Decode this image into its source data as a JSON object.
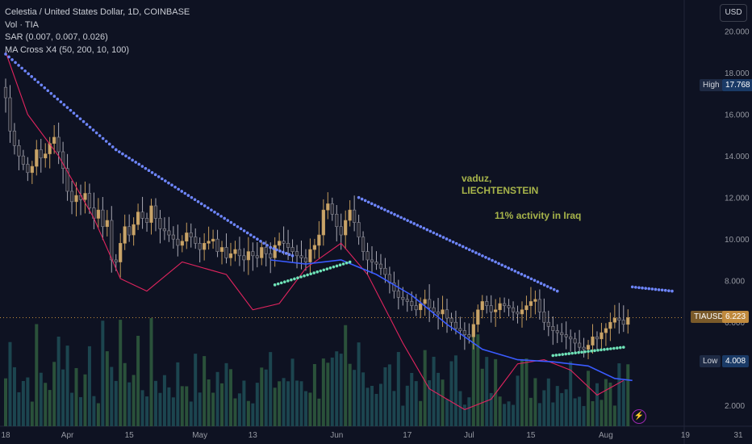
{
  "legend": {
    "title": "Celestia / United States Dollar, 1D, COINBASE",
    "volume": "Vol · TIA",
    "sar": "SAR (0.007, 0.007, 0.026)",
    "ma": "MA Cross X4 (50, 200, 10, 100)"
  },
  "currency_button": "USD",
  "annotations": {
    "location": "vaduz,\nLIECHTENSTEIN",
    "activity": "11% activity in Iraq"
  },
  "tags": {
    "high_label": "High",
    "high_value": "17.768",
    "low_label": "Low",
    "low_value": "4.008",
    "symbol": "TIAUSD",
    "current_value": "6.223"
  },
  "colors": {
    "background": "#0e1222",
    "up": "#c8a46a",
    "down": "#2b2b35",
    "candle_border_up": "#c29a5b",
    "sar_down": "#6e86ff",
    "sar_up": "#6fe3b8",
    "ma_fast": "#e0245e",
    "ma_slow": "#3a5bff",
    "vol_up": "#2f5d3e",
    "vol_down": "#1f4f57"
  },
  "chart_data": {
    "type": "candlestick",
    "symbol": "TIAUSD",
    "interval": "1D",
    "exchange": "COINBASE",
    "y_axis": {
      "min": 1.0,
      "max": 21.5,
      "ticks": [
        2.0,
        4.0,
        6.0,
        8.0,
        10.0,
        12.0,
        14.0,
        16.0,
        18.0,
        20.0
      ]
    },
    "x_tick_labels": [
      {
        "label": "18",
        "day": 0
      },
      {
        "label": "Apr",
        "day": 14
      },
      {
        "label": "15",
        "day": 28
      },
      {
        "label": "May",
        "day": 44
      },
      {
        "label": "13",
        "day": 56
      },
      {
        "label": "Jun",
        "day": 75
      },
      {
        "label": "17",
        "day": 91
      },
      {
        "label": "Jul",
        "day": 105
      },
      {
        "label": "15",
        "day": 119
      },
      {
        "label": "Aug",
        "day": 136
      },
      {
        "label": "19",
        "day": 154
      },
      {
        "label": "31",
        "day": 166
      }
    ],
    "high": 17.768,
    "low": 4.008,
    "last": 6.223,
    "closes": [
      16.8,
      15.2,
      14.5,
      14.0,
      13.6,
      13.2,
      13.5,
      14.3,
      13.9,
      14.1,
      14.6,
      14.9,
      14.2,
      13.4,
      12.3,
      11.8,
      12.1,
      11.9,
      12.2,
      11.5,
      11.0,
      11.4,
      10.6,
      10.9,
      9.0,
      8.9,
      9.8,
      10.6,
      10.2,
      10.7,
      11.3,
      11.0,
      10.8,
      11.6,
      11.0,
      10.5,
      10.4,
      10.2,
      10.0,
      9.7,
      9.9,
      10.3,
      10.1,
      9.8,
      9.5,
      9.8,
      9.9,
      10.0,
      9.4,
      9.6,
      9.1,
      9.3,
      9.5,
      9.2,
      9.0,
      9.4,
      9.2,
      9.1,
      9.6,
      9.3,
      9.1,
      9.7,
      9.9,
      9.8,
      9.6,
      9.4,
      9.2,
      9.1,
      8.9,
      9.5,
      9.7,
      10.2,
      11.4,
      11.7,
      11.2,
      10.6,
      10.2,
      10.9,
      11.4,
      10.8,
      10.1,
      9.4,
      9.0,
      8.9,
      8.8,
      8.6,
      8.3,
      7.9,
      7.5,
      7.2,
      7.1,
      7.0,
      6.8,
      6.6,
      6.9,
      7.1,
      6.7,
      6.5,
      6.4,
      6.6,
      6.2,
      6.0,
      5.7,
      5.6,
      5.4,
      5.3,
      5.9,
      6.6,
      7.0,
      6.8,
      6.5,
      6.6,
      6.9,
      6.8,
      6.7,
      6.5,
      6.4,
      6.6,
      6.8,
      7.0,
      7.1,
      6.5,
      6.0,
      5.8,
      5.6,
      5.5,
      5.4,
      5.3,
      5.2,
      5.0,
      4.8,
      4.7,
      4.9,
      5.3,
      5.2,
      5.5,
      5.7,
      6.0,
      6.2,
      6.1,
      5.9,
      6.223
    ],
    "sar_down": [
      {
        "day": 0,
        "value": 18.9
      },
      {
        "day": 25,
        "value": 14.3
      },
      {
        "day": 60,
        "value": 9.6
      },
      {
        "day": 65,
        "value": 9.2
      }
    ],
    "sar_down_2": [
      {
        "day": 80,
        "value": 12.0
      },
      {
        "day": 125,
        "value": 7.5
      }
    ],
    "sar_down_3": [
      {
        "day": 142,
        "value": 7.7
      },
      {
        "day": 151,
        "value": 7.5
      }
    ],
    "sar_up": [
      {
        "day": 61,
        "value": 7.8
      },
      {
        "day": 78,
        "value": 8.9
      }
    ],
    "sar_up_2": [
      {
        "day": 124,
        "value": 4.4
      },
      {
        "day": 140,
        "value": 4.8
      }
    ],
    "ma_fast": [
      {
        "day": 0,
        "value": 19.0
      },
      {
        "day": 5,
        "value": 16.0
      },
      {
        "day": 12,
        "value": 14.0
      },
      {
        "day": 20,
        "value": 11.0
      },
      {
        "day": 26,
        "value": 8.1
      },
      {
        "day": 32,
        "value": 7.5
      },
      {
        "day": 40,
        "value": 8.9
      },
      {
        "day": 50,
        "value": 8.3
      },
      {
        "day": 56,
        "value": 6.6
      },
      {
        "day": 62,
        "value": 6.9
      },
      {
        "day": 68,
        "value": 8.6
      },
      {
        "day": 76,
        "value": 9.8
      },
      {
        "day": 82,
        "value": 8.3
      },
      {
        "day": 90,
        "value": 5.0
      },
      {
        "day": 96,
        "value": 2.8
      },
      {
        "day": 104,
        "value": 1.8
      },
      {
        "day": 110,
        "value": 2.3
      },
      {
        "day": 116,
        "value": 4.0
      },
      {
        "day": 122,
        "value": 4.2
      },
      {
        "day": 128,
        "value": 3.7
      },
      {
        "day": 134,
        "value": 2.5
      },
      {
        "day": 140,
        "value": 3.2
      }
    ],
    "ma_slow": [
      {
        "day": 60,
        "value": 9.0
      },
      {
        "day": 68,
        "value": 8.8
      },
      {
        "day": 76,
        "value": 9.0
      },
      {
        "day": 84,
        "value": 8.3
      },
      {
        "day": 92,
        "value": 7.3
      },
      {
        "day": 100,
        "value": 5.9
      },
      {
        "day": 108,
        "value": 4.7
      },
      {
        "day": 116,
        "value": 4.2
      },
      {
        "day": 124,
        "value": 4.1
      },
      {
        "day": 132,
        "value": 3.9
      },
      {
        "day": 138,
        "value": 3.3
      },
      {
        "day": 142,
        "value": 3.2
      }
    ]
  }
}
